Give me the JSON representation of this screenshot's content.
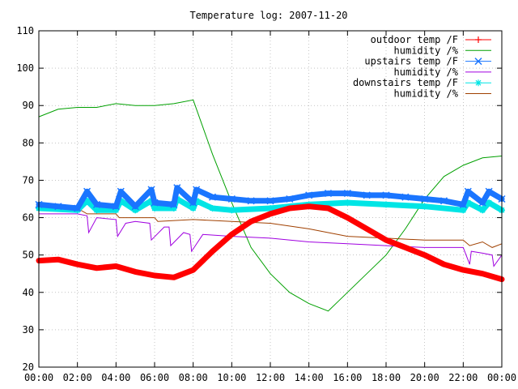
{
  "chart_data": {
    "type": "line",
    "title": "Temperature log: 2007-11-20",
    "xlabel": "",
    "ylabel": "",
    "xlim": [
      "00:00",
      "24:00"
    ],
    "ylim": [
      20,
      110
    ],
    "grid": true,
    "legend_position": "top-right",
    "x_ticks": [
      "00:00",
      "02:00",
      "04:00",
      "06:00",
      "08:00",
      "10:00",
      "12:00",
      "14:00",
      "16:00",
      "18:00",
      "20:00",
      "22:00",
      "00:00"
    ],
    "y_ticks": [
      20,
      30,
      40,
      50,
      60,
      70,
      80,
      90,
      100,
      110
    ],
    "series": [
      {
        "name": "outdoor temp /F",
        "color": "#ff0000",
        "style": "thick-line",
        "x": [
          "00:00",
          "01:00",
          "02:00",
          "03:00",
          "04:00",
          "05:00",
          "06:00",
          "07:00",
          "08:00",
          "09:00",
          "10:00",
          "11:00",
          "12:00",
          "13:00",
          "14:00",
          "15:00",
          "16:00",
          "17:00",
          "18:00",
          "19:00",
          "20:00",
          "21:00",
          "22:00",
          "23:00",
          "24:00"
        ],
        "values": [
          48.5,
          48.8,
          47.5,
          46.5,
          47,
          45.5,
          44.5,
          44,
          46,
          51,
          55.5,
          59,
          61,
          62.5,
          63,
          62.5,
          60,
          57,
          54,
          52,
          50,
          47.5,
          46,
          45,
          43.5
        ]
      },
      {
        "name": "humidity /%",
        "color": "#00a000",
        "style": "thin-line",
        "x": [
          "00:00",
          "01:00",
          "02:00",
          "03:00",
          "04:00",
          "05:00",
          "06:00",
          "07:00",
          "08:00",
          "09:00",
          "10:00",
          "11:00",
          "12:00",
          "13:00",
          "14:00",
          "15:00",
          "15:30",
          "16:00",
          "17:00",
          "18:00",
          "19:00",
          "20:00",
          "21:00",
          "22:00",
          "23:00",
          "24:00"
        ],
        "values": [
          87,
          89,
          89.5,
          89.5,
          90.5,
          90,
          90,
          90.5,
          91.5,
          77,
          64,
          52,
          45,
          40,
          37,
          35,
          37.5,
          40,
          45,
          50,
          57,
          65,
          71,
          74,
          76,
          76.5
        ]
      },
      {
        "name": "upstairs temp /F",
        "color": "#1a75ff",
        "style": "x-markers",
        "x": [
          "00:00",
          "01:00",
          "02:00",
          "02:30",
          "03:00",
          "04:00",
          "04:15",
          "05:00",
          "05:50",
          "06:00",
          "07:00",
          "07:10",
          "08:00",
          "08:10",
          "09:00",
          "10:00",
          "11:00",
          "12:00",
          "13:00",
          "14:00",
          "15:00",
          "16:00",
          "17:00",
          "18:00",
          "19:00",
          "20:00",
          "21:00",
          "22:00",
          "22:15",
          "23:00",
          "23:20",
          "24:00"
        ],
        "values": [
          63.5,
          63,
          62.5,
          67,
          63.5,
          63,
          67,
          63,
          67.5,
          64,
          63.5,
          68,
          64,
          67.5,
          65.5,
          65,
          64.5,
          64.5,
          65,
          66,
          66.5,
          66.5,
          66,
          66,
          65.5,
          65,
          64.5,
          63.5,
          67,
          64,
          67,
          65
        ]
      },
      {
        "name": "humidity /%",
        "color": "#a000e0",
        "style": "thin-line",
        "x": [
          "00:00",
          "02:00",
          "02:30",
          "02:35",
          "03:00",
          "04:00",
          "04:05",
          "04:30",
          "05:00",
          "05:45",
          "05:50",
          "06:30",
          "06:45",
          "06:50",
          "07:30",
          "07:50",
          "07:55",
          "08:30",
          "10:00",
          "12:00",
          "14:00",
          "16:00",
          "18:00",
          "20:00",
          "22:00",
          "22:20",
          "22:25",
          "23:00",
          "23:30",
          "23:35",
          "24:00"
        ],
        "values": [
          61,
          61,
          60.5,
          56,
          60,
          59.5,
          55,
          58.5,
          59,
          58.5,
          54,
          57.5,
          57.5,
          52.5,
          56,
          55.5,
          51,
          55.5,
          55,
          54.5,
          53.5,
          53,
          52.5,
          52,
          52,
          47.5,
          51,
          50.5,
          50,
          47,
          50
        ]
      },
      {
        "name": "downstairs temp /F",
        "color": "#00e5e5",
        "style": "star-markers",
        "x": [
          "00:00",
          "02:00",
          "02:30",
          "03:00",
          "04:00",
          "04:15",
          "05:00",
          "05:50",
          "06:00",
          "07:00",
          "07:10",
          "08:00",
          "08:10",
          "09:00",
          "10:00",
          "12:00",
          "14:00",
          "16:00",
          "18:00",
          "20:00",
          "22:00",
          "22:15",
          "23:00",
          "23:20",
          "24:00"
        ],
        "values": [
          62.5,
          62,
          64.5,
          62,
          62,
          64.5,
          62,
          64.5,
          62.5,
          62.5,
          65,
          62.5,
          64.5,
          62.5,
          62,
          62.5,
          63.5,
          64,
          63.5,
          63,
          62,
          64,
          62,
          64,
          62
        ]
      },
      {
        "name": "humidity /%",
        "color": "#a04000",
        "style": "thin-line",
        "x": [
          "00:00",
          "02:00",
          "02:30",
          "03:00",
          "04:00",
          "04:10",
          "06:00",
          "06:10",
          "08:00",
          "10:00",
          "12:00",
          "14:00",
          "16:00",
          "18:00",
          "20:00",
          "22:00",
          "22:20",
          "23:00",
          "23:30",
          "24:00"
        ],
        "values": [
          63,
          62.5,
          61,
          61,
          61,
          60,
          60,
          59,
          59.5,
          59,
          58.5,
          57,
          55,
          54.5,
          54,
          54,
          52.5,
          53.5,
          52,
          53
        ]
      }
    ]
  }
}
